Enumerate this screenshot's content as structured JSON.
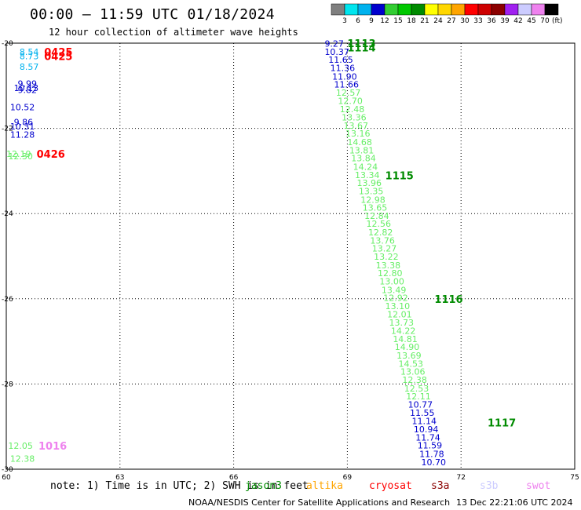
{
  "header": {
    "title": "00:00 – 11:59 UTC 01/18/2024",
    "subtitle": "12 hour collection of altimeter wave heights"
  },
  "colorbar": {
    "labels": [
      "3",
      "6",
      "9",
      "12",
      "15",
      "18",
      "21",
      "24",
      "27",
      "30",
      "33",
      "36",
      "39",
      "42",
      "45",
      "70"
    ],
    "unit": "(ft)",
    "colors": [
      "#7f7f7f",
      "#00e5ee",
      "#00b2ee",
      "#0000cd",
      "#32cd32",
      "#00c800",
      "#008b00",
      "#ffff00",
      "#ffd700",
      "#ffa500",
      "#ff0000",
      "#cd0000",
      "#8b0000",
      "#a020f0",
      "#ccccff",
      "#ee82ee",
      "#000000"
    ]
  },
  "map": {
    "lon_ticks": [
      "60",
      "63",
      "66",
      "69",
      "72",
      "75"
    ],
    "lat_ticks": [
      "-20",
      "-22",
      "-24",
      "-26",
      "-28",
      "-30"
    ],
    "lon_range": [
      60,
      75
    ],
    "lat_range": [
      -30,
      -20
    ]
  },
  "obs": [
    {
      "t": "9.27",
      "lon": 68.4,
      "lat": -20.01,
      "c": "#0000cd"
    },
    {
      "t": "10.37",
      "lon": 68.4,
      "lat": -20.2,
      "c": "#0000cd"
    },
    {
      "t": "11.65",
      "lon": 68.5,
      "lat": -20.39,
      "c": "#0000cd"
    },
    {
      "t": "11.36",
      "lon": 68.55,
      "lat": -20.58,
      "c": "#0000cd"
    },
    {
      "t": "11.90",
      "lon": 68.6,
      "lat": -20.78,
      "c": "#0000cd"
    },
    {
      "t": "11.66",
      "lon": 68.65,
      "lat": -20.97,
      "c": "#0000cd"
    },
    {
      "t": "12.57",
      "lon": 68.7,
      "lat": -21.16,
      "c": "#66ee66"
    },
    {
      "t": "12.70",
      "lon": 68.75,
      "lat": -21.35,
      "c": "#66ee66"
    },
    {
      "t": "12.48",
      "lon": 68.8,
      "lat": -21.55,
      "c": "#66ee66"
    },
    {
      "t": "13.36",
      "lon": 68.85,
      "lat": -21.74,
      "c": "#66ee66"
    },
    {
      "t": "13.67",
      "lon": 68.9,
      "lat": -21.93,
      "c": "#66ee66"
    },
    {
      "t": "13.16",
      "lon": 68.95,
      "lat": -22.12,
      "c": "#66ee66"
    },
    {
      "t": "14.68",
      "lon": 69.0,
      "lat": -22.32,
      "c": "#66ee66"
    },
    {
      "t": "13.81",
      "lon": 69.05,
      "lat": -22.51,
      "c": "#66ee66"
    },
    {
      "t": "13.84",
      "lon": 69.1,
      "lat": -22.7,
      "c": "#66ee66"
    },
    {
      "t": "14.24",
      "lon": 69.15,
      "lat": -22.9,
      "c": "#66ee66"
    },
    {
      "t": "13.34",
      "lon": 69.2,
      "lat": -23.09,
      "c": "#66ee66"
    },
    {
      "t": "13.96",
      "lon": 69.25,
      "lat": -23.28,
      "c": "#66ee66"
    },
    {
      "t": "13.35",
      "lon": 69.3,
      "lat": -23.47,
      "c": "#66ee66"
    },
    {
      "t": "12.98",
      "lon": 69.35,
      "lat": -23.67,
      "c": "#66ee66"
    },
    {
      "t": "13.65",
      "lon": 69.4,
      "lat": -23.86,
      "c": "#66ee66"
    },
    {
      "t": "12.84",
      "lon": 69.45,
      "lat": -24.05,
      "c": "#66ee66"
    },
    {
      "t": "12.56",
      "lon": 69.5,
      "lat": -24.24,
      "c": "#66ee66"
    },
    {
      "t": "12.82",
      "lon": 69.55,
      "lat": -24.44,
      "c": "#66ee66"
    },
    {
      "t": "13.76",
      "lon": 69.6,
      "lat": -24.63,
      "c": "#66ee66"
    },
    {
      "t": "13.27",
      "lon": 69.65,
      "lat": -24.82,
      "c": "#66ee66"
    },
    {
      "t": "13.22",
      "lon": 69.7,
      "lat": -25.01,
      "c": "#66ee66"
    },
    {
      "t": "13.38",
      "lon": 69.75,
      "lat": -25.21,
      "c": "#66ee66"
    },
    {
      "t": "12.80",
      "lon": 69.8,
      "lat": -25.4,
      "c": "#66ee66"
    },
    {
      "t": "13.00",
      "lon": 69.85,
      "lat": -25.59,
      "c": "#66ee66"
    },
    {
      "t": "13.49",
      "lon": 69.9,
      "lat": -25.79,
      "c": "#66ee66"
    },
    {
      "t": "12.92",
      "lon": 69.95,
      "lat": -25.98,
      "c": "#66ee66"
    },
    {
      "t": "13.10",
      "lon": 70.0,
      "lat": -26.17,
      "c": "#66ee66"
    },
    {
      "t": "12.01",
      "lon": 70.05,
      "lat": -26.36,
      "c": "#66ee66"
    },
    {
      "t": "13.73",
      "lon": 70.1,
      "lat": -26.56,
      "c": "#66ee66"
    },
    {
      "t": "14.22",
      "lon": 70.15,
      "lat": -26.75,
      "c": "#66ee66"
    },
    {
      "t": "14.81",
      "lon": 70.2,
      "lat": -26.94,
      "c": "#66ee66"
    },
    {
      "t": "14.90",
      "lon": 70.25,
      "lat": -27.13,
      "c": "#66ee66"
    },
    {
      "t": "13.69",
      "lon": 70.3,
      "lat": -27.33,
      "c": "#66ee66"
    },
    {
      "t": "14.53",
      "lon": 70.35,
      "lat": -27.52,
      "c": "#66ee66"
    },
    {
      "t": "13.06",
      "lon": 70.4,
      "lat": -27.71,
      "c": "#66ee66"
    },
    {
      "t": "12.38",
      "lon": 70.45,
      "lat": -27.9,
      "c": "#66ee66"
    },
    {
      "t": "12.53",
      "lon": 70.5,
      "lat": -28.1,
      "c": "#66ee66"
    },
    {
      "t": "12.11",
      "lon": 70.55,
      "lat": -28.29,
      "c": "#66ee66"
    },
    {
      "t": "10.77",
      "lon": 70.6,
      "lat": -28.48,
      "c": "#0000cd"
    },
    {
      "t": "11.55",
      "lon": 70.65,
      "lat": -28.67,
      "c": "#0000cd"
    },
    {
      "t": "11.14",
      "lon": 70.7,
      "lat": -28.87,
      "c": "#0000cd"
    },
    {
      "t": "10.94",
      "lon": 70.75,
      "lat": -29.06,
      "c": "#0000cd"
    },
    {
      "t": "11.74",
      "lon": 70.8,
      "lat": -29.25,
      "c": "#0000cd"
    },
    {
      "t": "11.59",
      "lon": 70.85,
      "lat": -29.44,
      "c": "#0000cd"
    },
    {
      "t": "11.78",
      "lon": 70.9,
      "lat": -29.64,
      "c": "#0000cd"
    },
    {
      "t": "10.70",
      "lon": 70.95,
      "lat": -29.83,
      "c": "#0000cd"
    },
    {
      "t": "8.54",
      "lon": 60.35,
      "lat": -20.2,
      "c": "#00b2ee"
    },
    {
      "t": "8.73",
      "lon": 60.35,
      "lat": -20.3,
      "c": "#00b2ee"
    },
    {
      "t": "8.57",
      "lon": 60.35,
      "lat": -20.55,
      "c": "#00b2ee"
    },
    {
      "t": "9.99",
      "lon": 60.3,
      "lat": -20.95,
      "c": "#0000cd"
    },
    {
      "t": "10.13",
      "lon": 60.2,
      "lat": -21.05,
      "c": "#0000cd"
    },
    {
      "t": "9.82",
      "lon": 60.3,
      "lat": -21.1,
      "c": "#0000cd"
    },
    {
      "t": "10.52",
      "lon": 60.1,
      "lat": -21.5,
      "c": "#0000cd"
    },
    {
      "t": "9.86",
      "lon": 60.2,
      "lat": -21.85,
      "c": "#0000cd"
    },
    {
      "t": "10.31",
      "lon": 60.1,
      "lat": -21.95,
      "c": "#0000cd"
    },
    {
      "t": "11.28",
      "lon": 60.1,
      "lat": -22.15,
      "c": "#0000cd"
    },
    {
      "t": "12.19",
      "lon": 60.0,
      "lat": -22.6,
      "c": "#66ee66"
    },
    {
      "t": "12.30",
      "lon": 60.05,
      "lat": -22.65,
      "c": "#66ee66"
    },
    {
      "t": "12.05",
      "lon": 60.05,
      "lat": -29.45,
      "c": "#66ee66"
    },
    {
      "t": "12.38",
      "lon": 60.1,
      "lat": -29.75,
      "c": "#66ee66"
    }
  ],
  "time_labels": [
    {
      "t": "1113",
      "lon": 69.0,
      "lat": -20.0,
      "c": "#008b00"
    },
    {
      "t": "1114",
      "lon": 69.0,
      "lat": -20.1,
      "c": "#008b00"
    },
    {
      "t": "1115",
      "lon": 70.0,
      "lat": -23.1,
      "c": "#008b00"
    },
    {
      "t": "1116",
      "lon": 71.3,
      "lat": -26.0,
      "c": "#008b00"
    },
    {
      "t": "1117",
      "lon": 72.7,
      "lat": -28.9,
      "c": "#008b00"
    },
    {
      "t": "0425",
      "lon": 61.0,
      "lat": -20.2,
      "c": "#ff0000"
    },
    {
      "t": "0425",
      "lon": 61.0,
      "lat": -20.3,
      "c": "#ff0000"
    },
    {
      "t": "0426",
      "lon": 60.8,
      "lat": -22.6,
      "c": "#ff0000"
    },
    {
      "t": "1016",
      "lon": 60.85,
      "lat": -29.45,
      "c": "#ee82ee"
    }
  ],
  "footer": {
    "note": "note: 1) Time is in UTC; 2) SWH is in feet",
    "satellites": [
      {
        "name": "jason3",
        "color": "#008b00"
      },
      {
        "name": "altika",
        "color": "#ffa500"
      },
      {
        "name": "cryosat",
        "color": "#ff0000"
      },
      {
        "name": "s3a",
        "color": "#8b0000"
      },
      {
        "name": "s3b",
        "color": "#ccccff"
      },
      {
        "name": "swot",
        "color": "#ee82ee"
      }
    ],
    "credit": "NOAA/NESDIS Center for Satellite Applications and Research",
    "timestamp": "13 Dec 22:21:06 UTC 2024"
  }
}
